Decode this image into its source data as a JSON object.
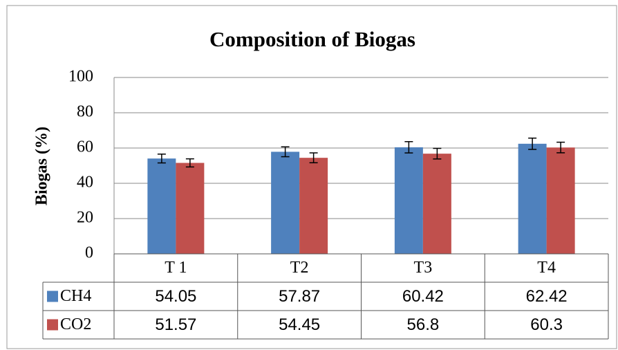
{
  "chart_data": {
    "type": "bar",
    "title": "Composition of Biogas",
    "y_label": "Biogas (%)",
    "categories": [
      "T 1",
      "T2",
      "T3",
      "T4"
    ],
    "series": [
      {
        "name": "CH4",
        "color": "#4f81bd",
        "values": [
          54.05,
          57.87,
          60.42,
          62.42
        ],
        "errors": [
          2.5,
          2.8,
          3.2,
          3.2
        ]
      },
      {
        "name": "CO2",
        "color": "#c0504d",
        "values": [
          51.57,
          54.45,
          56.8,
          60.3
        ],
        "errors": [
          2.3,
          2.8,
          3.0,
          3.0
        ]
      }
    ],
    "ylim": [
      0,
      100
    ],
    "yticks": [
      0,
      20,
      40,
      60,
      80,
      100
    ],
    "grid": true,
    "data_table": true
  }
}
